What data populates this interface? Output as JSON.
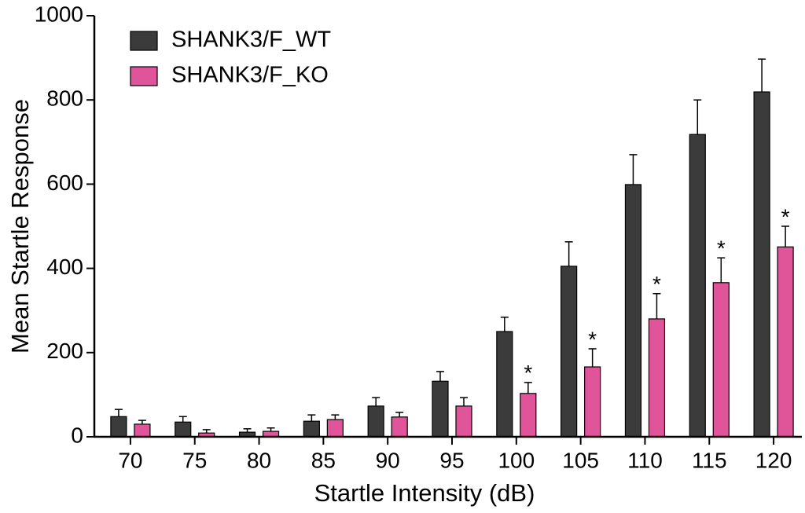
{
  "chart_data": {
    "type": "bar",
    "x_label": "Startle Intensity (dB)",
    "y_label": "Mean Startle Response",
    "categories": [
      "70",
      "75",
      "80",
      "85",
      "90",
      "95",
      "100",
      "105",
      "110",
      "115",
      "120"
    ],
    "series": [
      {
        "name": "SHANK3/F_WT",
        "color": "#3b3b3b",
        "values": [
          48,
          35,
          11,
          37,
          73,
          132,
          250,
          405,
          599,
          718,
          819
        ],
        "errors": [
          17,
          13,
          8,
          15,
          20,
          23,
          34,
          58,
          71,
          82,
          78
        ]
      },
      {
        "name": "SHANK3/F_KO",
        "color": "#e0559a",
        "values": [
          30,
          9,
          13,
          41,
          47,
          73,
          103,
          166,
          280,
          366,
          451
        ],
        "errors": [
          9,
          8,
          8,
          11,
          11,
          20,
          26,
          43,
          60,
          59,
          49
        ],
        "annotations": [
          null,
          null,
          null,
          null,
          null,
          null,
          "*",
          "*",
          "*",
          "*",
          "*"
        ]
      }
    ],
    "ylim": [
      0,
      1000
    ],
    "yticks": [
      0,
      200,
      400,
      600,
      800,
      1000
    ],
    "legend": "upper left",
    "grid": false
  }
}
